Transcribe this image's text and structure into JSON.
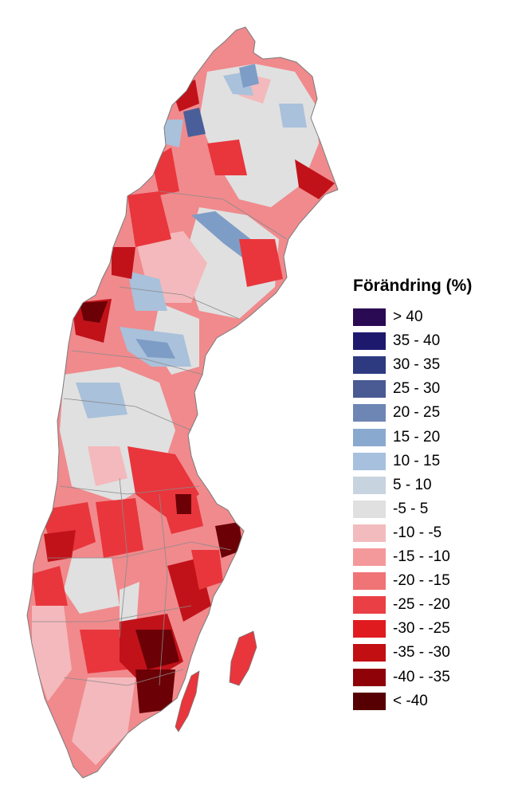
{
  "map": {
    "subject": "Sweden catchments choropleth",
    "colors": {
      "land_outline": "#7a7a7a",
      "neutral": "#e0e0e0",
      "light_red": "#f4b9bc",
      "mid_red": "#f08a8d",
      "red": "#e8363c",
      "dark_red": "#c1121a",
      "very_dark_red": "#6b0006",
      "light_blue": "#a9c1da",
      "mid_blue": "#7e9dc6",
      "dark_blue": "#4a5f99"
    }
  },
  "legend": {
    "title": "Förändring (%)",
    "items": [
      {
        "label": "> 40",
        "color": "#2b0a54"
      },
      {
        "label": "35 - 40",
        "color": "#1d1a6e"
      },
      {
        "label": "30 - 35",
        "color": "#2e3a80"
      },
      {
        "label": "25 - 30",
        "color": "#4a5a92"
      },
      {
        "label": "20 - 25",
        "color": "#6d86b4"
      },
      {
        "label": "15 - 20",
        "color": "#8aa9cf"
      },
      {
        "label": "10 - 15",
        "color": "#a7c0de"
      },
      {
        "label": "5 - 10",
        "color": "#c8d3e0"
      },
      {
        "label": "-5 - 5",
        "color": "#e0e0e0"
      },
      {
        "label": "-10 - -5",
        "color": "#f2bcbf"
      },
      {
        "label": "-15 - -10",
        "color": "#f4999b"
      },
      {
        "label": "-20 - -15",
        "color": "#f07476"
      },
      {
        "label": "-25 - -20",
        "color": "#ea4045"
      },
      {
        "label": "-30 - -25",
        "color": "#e01b20"
      },
      {
        "label": "-35 - -30",
        "color": "#c20f12"
      },
      {
        "label": "-40 - -35",
        "color": "#8e0208"
      },
      {
        "label": "< -40",
        "color": "#560004"
      }
    ]
  }
}
